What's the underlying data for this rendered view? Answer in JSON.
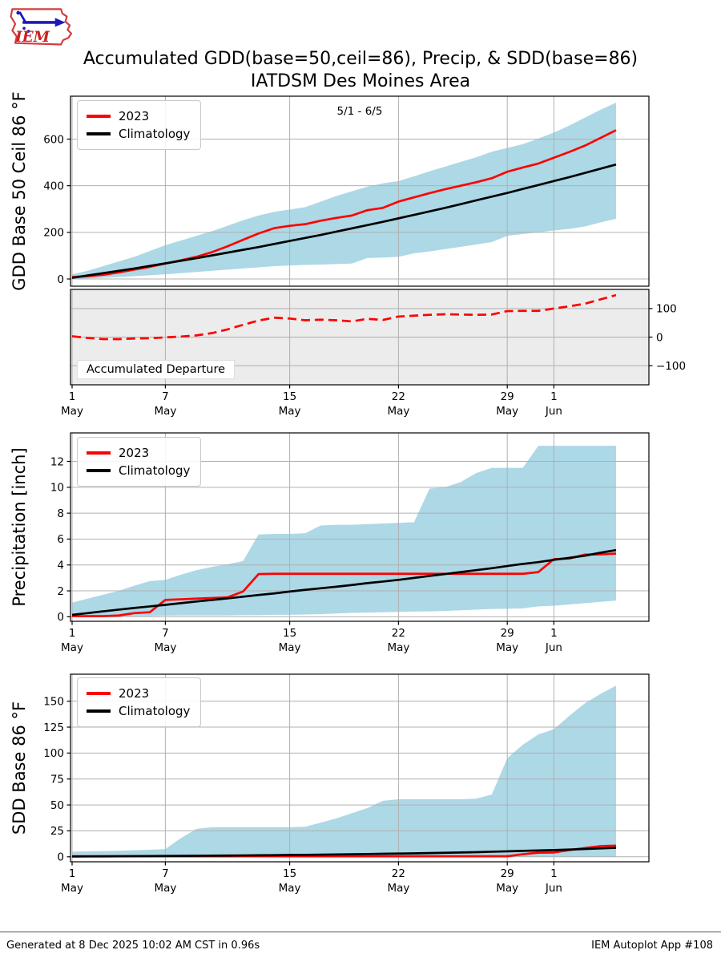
{
  "header": {
    "title_line1": "Accumulated GDD(base=50,ceil=86), Precip, & SDD(base=86)",
    "title_line2": "IATDSM Des Moines Area",
    "logo_text": "IEM"
  },
  "legend": {
    "series_2023": "2023",
    "series_climatology": "Climatology"
  },
  "footer": {
    "left": "Generated at 8 Dec 2025 10:02 AM CST in 0.96s",
    "right": "IEM Autoplot App #108"
  },
  "colors": {
    "series_2023": "#ff0000",
    "climatology": "#000000",
    "band": "#add8e6",
    "departure_background": "#ececec",
    "grid": "#b0b0b0"
  },
  "x_axis": {
    "start": "5/1",
    "end": "6/5",
    "n_points": 36,
    "ticks": [
      {
        "day": 0,
        "line1": "1",
        "line2": "May"
      },
      {
        "day": 6,
        "line1": "7",
        "line2": "May"
      },
      {
        "day": 14,
        "line1": "15",
        "line2": "May"
      },
      {
        "day": 21,
        "line1": "22",
        "line2": "May"
      },
      {
        "day": 28,
        "line1": "29",
        "line2": "May"
      },
      {
        "day": 31,
        "line1": "1",
        "line2": "Jun"
      }
    ]
  },
  "chart_data": [
    {
      "name": "gdd-accumulation",
      "type": "line",
      "ylabel": "GDD Base 50 Ceil 86 °F",
      "annotation": "5/1 - 6/5",
      "yticks": [
        0,
        200,
        400,
        600
      ],
      "ylim": [
        -31,
        784
      ],
      "band": {
        "label": "climatology-range",
        "color": "#add8e6",
        "upper": [
          20,
          35,
          55,
          75,
          95,
          120,
          145,
          165,
          185,
          205,
          228,
          252,
          272,
          288,
          298,
          308,
          332,
          356,
          376,
          396,
          410,
          420,
          440,
          462,
          482,
          502,
          522,
          546,
          562,
          578,
          602,
          628,
          658,
          692,
          726,
          756
        ],
        "lower": [
          0,
          2,
          5,
          8,
          12,
          16,
          20,
          25,
          30,
          35,
          40,
          45,
          50,
          55,
          58,
          60,
          62,
          64,
          66,
          90,
          92,
          95,
          110,
          118,
          128,
          138,
          148,
          158,
          185,
          193,
          200,
          208,
          215,
          225,
          243,
          258
        ]
      },
      "series": [
        {
          "name": "2023",
          "color": "#ff0000",
          "values": [
            8,
            12,
            18,
            28,
            40,
            52,
            66,
            80,
            95,
            115,
            140,
            168,
            195,
            218,
            228,
            235,
            250,
            262,
            272,
            295,
            305,
            332,
            350,
            368,
            385,
            400,
            415,
            432,
            460,
            478,
            495,
            520,
            545,
            572,
            605,
            638
          ]
        },
        {
          "name": "Climatology",
          "color": "#000000",
          "values": [
            5,
            15,
            25,
            35,
            45,
            56,
            67,
            78,
            89,
            101,
            113,
            125,
            137,
            150,
            163,
            176,
            189,
            203,
            217,
            231,
            245,
            260,
            275,
            290,
            305,
            321,
            337,
            353,
            369,
            386,
            403,
            420,
            437,
            455,
            473,
            491
          ]
        }
      ]
    },
    {
      "name": "gdd-departure",
      "type": "line",
      "label": "Accumulated Departure",
      "yticks": [
        100,
        0,
        -100
      ],
      "ytick_labels": [
        "100",
        "0",
        "−100"
      ],
      "ylim": [
        -167,
        167
      ],
      "axis_side": "right",
      "background": "#ececec",
      "series": [
        {
          "name": "2023 departure",
          "color": "#ff0000",
          "dash": true,
          "values": [
            3,
            -3,
            -7,
            -7,
            -5,
            -4,
            -1,
            2,
            6,
            14,
            27,
            43,
            58,
            68,
            65,
            59,
            61,
            59,
            55,
            64,
            60,
            72,
            75,
            78,
            80,
            79,
            78,
            79,
            91,
            92,
            92,
            100,
            108,
            117,
            132,
            147
          ]
        }
      ]
    },
    {
      "name": "precipitation",
      "type": "line",
      "ylabel": "Precipitation [inch]",
      "yticks": [
        0,
        2,
        4,
        6,
        8,
        10,
        12
      ],
      "ylim": [
        -0.35,
        14.2
      ],
      "band": {
        "label": "climatology-range",
        "color": "#add8e6",
        "upper": [
          1.1,
          1.4,
          1.7,
          2.0,
          2.4,
          2.75,
          2.85,
          3.25,
          3.6,
          3.85,
          4.05,
          4.3,
          6.35,
          6.4,
          6.4,
          6.45,
          7.05,
          7.1,
          7.1,
          7.15,
          7.2,
          7.25,
          7.3,
          9.9,
          10.0,
          10.4,
          11.1,
          11.5,
          11.5,
          11.5,
          13.2,
          13.2,
          13.2,
          13.2,
          13.2,
          13.2
        ],
        "lower": [
          0.02,
          0.02,
          0.03,
          0.03,
          0.05,
          0.05,
          0.08,
          0.1,
          0.1,
          0.1,
          0.1,
          0.12,
          0.12,
          0.15,
          0.15,
          0.18,
          0.2,
          0.25,
          0.3,
          0.32,
          0.35,
          0.38,
          0.4,
          0.42,
          0.45,
          0.5,
          0.55,
          0.6,
          0.62,
          0.65,
          0.8,
          0.85,
          0.95,
          1.05,
          1.15,
          1.25
        ]
      },
      "series": [
        {
          "name": "2023",
          "color": "#ff0000",
          "values": [
            0.05,
            0.05,
            0.05,
            0.1,
            0.28,
            0.35,
            1.3,
            1.35,
            1.4,
            1.45,
            1.5,
            1.95,
            3.3,
            3.32,
            3.32,
            3.32,
            3.32,
            3.32,
            3.32,
            3.32,
            3.32,
            3.32,
            3.32,
            3.32,
            3.32,
            3.32,
            3.32,
            3.32,
            3.32,
            3.32,
            3.45,
            4.45,
            4.5,
            4.8,
            4.82,
            4.88
          ]
        },
        {
          "name": "Climatology",
          "color": "#000000",
          "values": [
            0.15,
            0.28,
            0.42,
            0.55,
            0.68,
            0.8,
            0.92,
            1.05,
            1.18,
            1.3,
            1.42,
            1.55,
            1.68,
            1.8,
            1.95,
            2.08,
            2.2,
            2.32,
            2.45,
            2.6,
            2.72,
            2.85,
            3.0,
            3.15,
            3.3,
            3.45,
            3.6,
            3.75,
            3.92,
            4.08,
            4.22,
            4.4,
            4.55,
            4.72,
            4.95,
            5.15
          ]
        }
      ]
    },
    {
      "name": "sdd-accumulation",
      "type": "line",
      "ylabel": "SDD Base 86 °F",
      "yticks": [
        0,
        25,
        50,
        75,
        100,
        125,
        150
      ],
      "ylim": [
        -4.8,
        176
      ],
      "band": {
        "label": "climatology-range",
        "color": "#add8e6",
        "upper": [
          5,
          5.2,
          5.5,
          5.8,
          6.3,
          6.8,
          7.5,
          18,
          27,
          28.5,
          28.5,
          28.5,
          28.5,
          28.5,
          28.5,
          29,
          33,
          37,
          42,
          47,
          54,
          55.5,
          55.5,
          55.5,
          55.5,
          55.5,
          56,
          60,
          95,
          108,
          118,
          123,
          136,
          148,
          157,
          165
        ],
        "lower": [
          0,
          0,
          0,
          0,
          0,
          0,
          0,
          0,
          0,
          0,
          0,
          0,
          0,
          0,
          0,
          0,
          0,
          0,
          0,
          0,
          0,
          0,
          0,
          0,
          0,
          0,
          0,
          0,
          0,
          0,
          0,
          0,
          0,
          0,
          0,
          0
        ]
      },
      "series": [
        {
          "name": "2023",
          "color": "#ff0000",
          "values": [
            0.5,
            0.5,
            0.5,
            0.5,
            0.5,
            0.5,
            0.5,
            0.5,
            0.5,
            0.5,
            0.5,
            0.5,
            0.5,
            0.5,
            0.5,
            0.5,
            0.5,
            0.5,
            0.5,
            0.5,
            0.5,
            0.5,
            0.5,
            0.5,
            0.5,
            0.5,
            0.5,
            0.5,
            0.5,
            2.5,
            4.0,
            4.2,
            6.5,
            8.5,
            10.3,
            10.8
          ]
        },
        {
          "name": "Climatology",
          "color": "#000000",
          "values": [
            0.3,
            0.35,
            0.4,
            0.5,
            0.6,
            0.7,
            0.8,
            0.9,
            1.0,
            1.1,
            1.2,
            1.35,
            1.5,
            1.6,
            1.75,
            1.9,
            2.1,
            2.3,
            2.5,
            2.7,
            2.9,
            3.1,
            3.3,
            3.6,
            3.9,
            4.2,
            4.5,
            4.9,
            5.3,
            5.7,
            6.1,
            6.5,
            7.0,
            7.5,
            8.1,
            8.7
          ]
        }
      ]
    }
  ]
}
